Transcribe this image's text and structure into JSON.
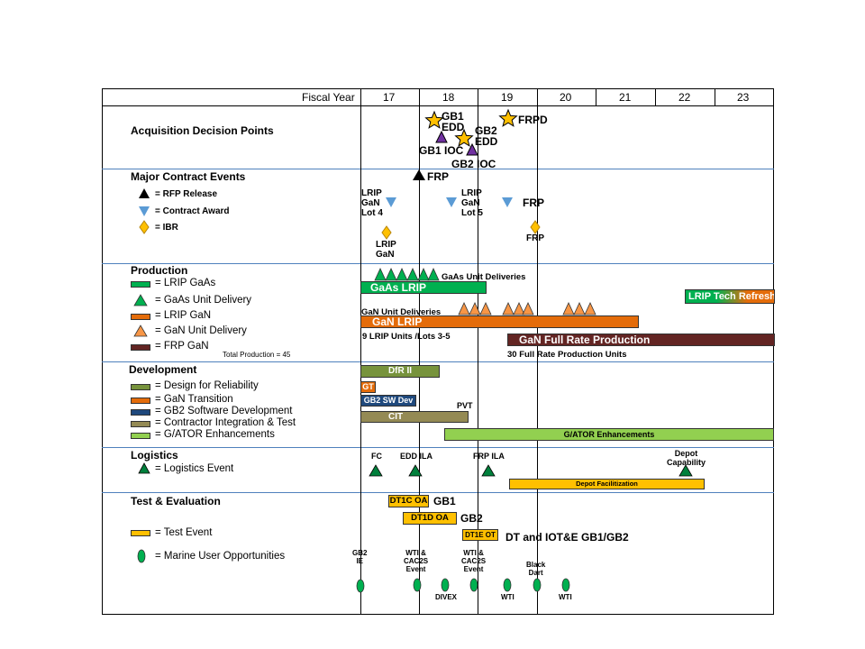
{
  "header": {
    "fiscal_year_label": "Fiscal Year",
    "years": [
      "17",
      "18",
      "19",
      "20",
      "21",
      "22",
      "23"
    ]
  },
  "acquisition": {
    "title": "Acquisition Decision Points",
    "gb1_edd": "GB1\nEDD",
    "gb2_edd": "GB2\nEDD",
    "frpd": "FRPD",
    "gb1_ioc": "GB1 IOC",
    "gb2_ioc": "GB2 IOC"
  },
  "contract": {
    "title": "Major Contract Events",
    "legend": [
      "= RFP Release",
      "= Contract Award",
      "= IBR"
    ],
    "frp": "FRP",
    "lrip_lot4": "LRIP\nGaN\nLot 4",
    "lrip_lot5": "LRIP\nGaN\nLot 5",
    "frp_award": "FRP",
    "lrip_gan": "LRIP\nGaN",
    "frp_ibr": "FRP"
  },
  "production": {
    "title": "Production",
    "legend": [
      "= LRIP GaAs",
      "= GaAs Unit Delivery",
      "= LRIP GaN",
      "= GaN Unit Delivery",
      "= FRP GaN"
    ],
    "total": "Total Production = 45",
    "gaas_deliveries": "GaAs Unit Deliveries",
    "gaas_lrip": "GaAs LRIP",
    "gan_deliveries": "GaN Unit Deliveries",
    "gan_lrip": "GaN LRIP",
    "lrip_units": "9 LRIP Units /Lots 3-5",
    "gan_frp": "GaN Full Rate Production",
    "frp_units": "30 Full Rate Production Units",
    "tech_refresh": "LRIP Tech Refresh"
  },
  "development": {
    "title": "Development",
    "legend": [
      "= Design for Reliability",
      "= GaN Transition",
      "= GB2 Software Development",
      "= Contractor Integration & Test",
      "= G/ATOR Enhancements"
    ],
    "dfr": "DfR II",
    "gt": "GT",
    "gb2_sw": "GB2 SW Dev",
    "cit": "CIT",
    "pvt": "PVT",
    "gator": "G/ATOR Enhancements"
  },
  "logistics": {
    "title": "Logistics",
    "legend": "= Logistics Event",
    "fc": "FC",
    "edd_ila": "EDD ILA",
    "frp_ila": "FRP ILA",
    "depot_cap": "Depot\nCapability",
    "depot_fac": "Depot Facilitization"
  },
  "test": {
    "title": "Test & Evaluation",
    "legend": [
      "= Test Event",
      "= Marine User Opportunities"
    ],
    "dt1c": "DT1C OA",
    "gb1": "GB1",
    "dt1d": "DT1D   OA",
    "gb2": "GB2",
    "dt1e": "DT1E OT",
    "iote": "DT and IOT&E GB1/GB2",
    "m1": "GB2\nIE",
    "m2": "WTI &\nCAC2S\nEvent",
    "m3": "DIVEX",
    "m4": "WTI &\nCAC2S\nEvent",
    "m5": "WTI",
    "m6": "Black\nDart",
    "m7": "WTI"
  },
  "colors": {
    "green": "#00b050",
    "orange": "#e46c0a",
    "maroon": "#632523",
    "olive": "#77933c",
    "navy": "#1f497d",
    "tan": "#948a54",
    "lime": "#92d050",
    "gold": "#ffc000",
    "blue": "#4f81bd"
  }
}
